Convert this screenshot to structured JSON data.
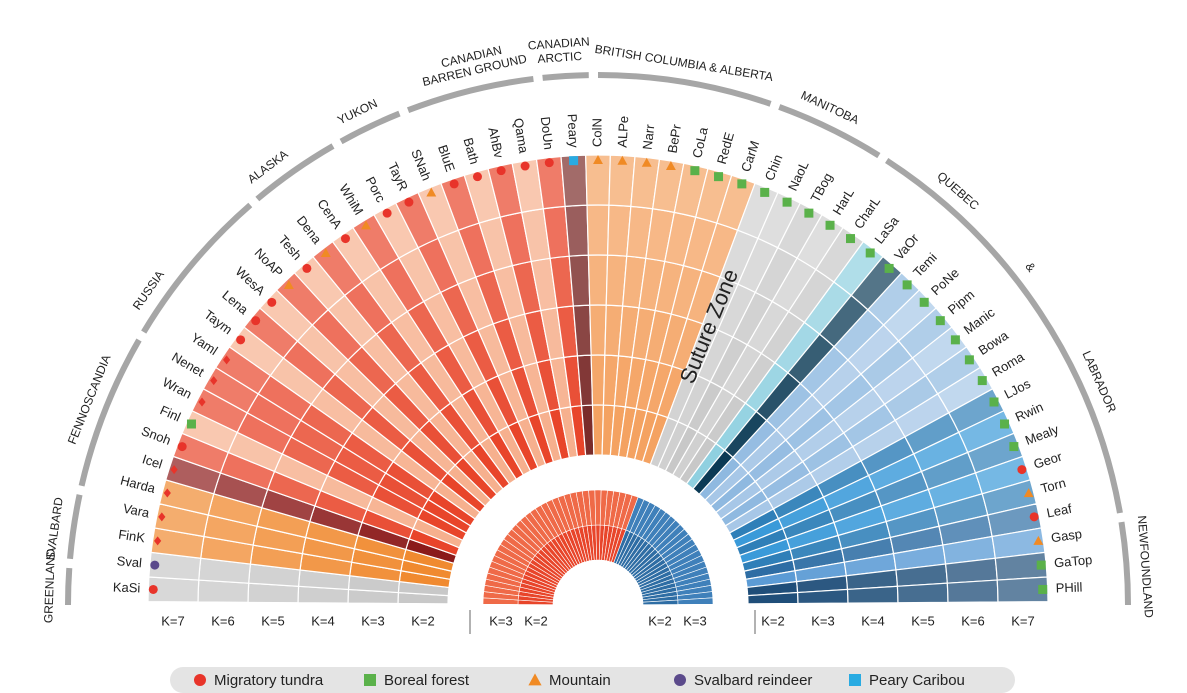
{
  "regions": [
    {
      "lines": [
        "GREENLAND"
      ]
    },
    {
      "lines": [
        "SVALBARD"
      ]
    },
    {
      "lines": [
        "FENNOSCANDIA"
      ]
    },
    {
      "lines": [
        "RUSSIA"
      ]
    },
    {
      "lines": [
        "ALASKA"
      ]
    },
    {
      "lines": [
        "YUKON"
      ]
    },
    {
      "lines": [
        "CANADIAN",
        "BARREN GROUND"
      ]
    },
    {
      "lines": [
        "CANADIAN",
        "ARCTIC"
      ]
    },
    {
      "lines": [
        "BRITISH COLUMBIA & ALBERTA"
      ]
    },
    {
      "lines": [
        "MANITOBA"
      ]
    },
    {
      "lines": [
        "QUEBEC"
      ]
    },
    {
      "lines": [
        "&"
      ]
    },
    {
      "lines": [
        "LABRADOR"
      ]
    },
    {
      "lines": [
        "NEWFOUNDLAND"
      ]
    }
  ],
  "populations": [
    {
      "label": "KaSi",
      "marker": "circle",
      "marker_color": "#e8342a",
      "fill": "#c8c8c8"
    },
    {
      "label": "Sval",
      "marker": "circle",
      "marker_color": "#5b4a8b",
      "fill": "#c8c8c8"
    },
    {
      "label": "FinK",
      "marker": "diamond",
      "marker_color": "#e8342a",
      "fill": "#f08a30"
    },
    {
      "label": "Vara",
      "marker": "diamond",
      "marker_color": "#e8342a",
      "fill": "#f08a30"
    },
    {
      "label": "Harda",
      "marker": "diamond",
      "marker_color": "#e8342a",
      "fill": "#f08a30"
    },
    {
      "label": "Icel",
      "marker": "diamond",
      "marker_color": "#e8342a",
      "fill": "#8b1a1a"
    },
    {
      "label": "Snoh",
      "marker": "circle",
      "marker_color": "#e8342a",
      "fill": "#e8452a"
    },
    {
      "label": "Finl",
      "marker": "square",
      "marker_color": "#5ab14a",
      "fill": "#f6b08e"
    },
    {
      "label": "Wran",
      "marker": "diamond",
      "marker_color": "#e8342a",
      "fill": "#e8452a"
    },
    {
      "label": "Nenet",
      "marker": "diamond",
      "marker_color": "#e8342a",
      "fill": "#e8452a"
    },
    {
      "label": "Yaml",
      "marker": "diamond",
      "marker_color": "#e8342a",
      "fill": "#e8452a"
    },
    {
      "label": "Taym",
      "marker": "circle",
      "marker_color": "#e8342a",
      "fill": "#f6b08e"
    },
    {
      "label": "Lena",
      "marker": "circle",
      "marker_color": "#e8342a",
      "fill": "#e8452a"
    },
    {
      "label": "WesA",
      "marker": "circle",
      "marker_color": "#e8342a",
      "fill": "#f6b08e"
    },
    {
      "label": "NoAP",
      "marker": "triangle",
      "marker_color": "#f08a24",
      "fill": "#e8452a"
    },
    {
      "label": "Tesh",
      "marker": "circle",
      "marker_color": "#e8342a",
      "fill": "#f6b08e"
    },
    {
      "label": "Dena",
      "marker": "triangle",
      "marker_color": "#f08a24",
      "fill": "#e8452a"
    },
    {
      "label": "CenA",
      "marker": "circle",
      "marker_color": "#e8342a",
      "fill": "#f6b08e"
    },
    {
      "label": "WhiM",
      "marker": "triangle",
      "marker_color": "#f08a24",
      "fill": "#e8452a"
    },
    {
      "label": "Porc",
      "marker": "circle",
      "marker_color": "#e8342a",
      "fill": "#f6b08e"
    },
    {
      "label": "TayR",
      "marker": "circle",
      "marker_color": "#e8342a",
      "fill": "#e8452a"
    },
    {
      "label": "SNah",
      "marker": "triangle",
      "marker_color": "#f08a24",
      "fill": "#f6b08e"
    },
    {
      "label": "BluE",
      "marker": "circle",
      "marker_color": "#e8342a",
      "fill": "#e8452a"
    },
    {
      "label": "Bath",
      "marker": "circle",
      "marker_color": "#e8342a",
      "fill": "#f6b08e"
    },
    {
      "label": "AhBv",
      "marker": "circle",
      "marker_color": "#e8342a",
      "fill": "#e8452a"
    },
    {
      "label": "Qama",
      "marker": "circle",
      "marker_color": "#e8342a",
      "fill": "#f6b08e"
    },
    {
      "label": "DoUn",
      "marker": "circle",
      "marker_color": "#e8342a",
      "fill": "#e8452a"
    },
    {
      "label": "Peary",
      "marker": "square",
      "marker_color": "#29abe2",
      "fill": "#7a2c2a"
    },
    {
      "label": "ColN",
      "marker": "triangle",
      "marker_color": "#f08a24",
      "fill": "#f4a261"
    },
    {
      "label": "ALPe",
      "marker": "triangle",
      "marker_color": "#f08a24",
      "fill": "#f4a261"
    },
    {
      "label": "Narr",
      "marker": "triangle",
      "marker_color": "#f08a24",
      "fill": "#f4a261"
    },
    {
      "label": "BePr",
      "marker": "triangle",
      "marker_color": "#f08a24",
      "fill": "#f4a261"
    },
    {
      "label": "CoLa",
      "marker": "square",
      "marker_color": "#5ab14a",
      "fill": "#f4a261"
    },
    {
      "label": "RedE",
      "marker": "square",
      "marker_color": "#5ab14a",
      "fill": "#f4a261"
    },
    {
      "label": "CarM",
      "marker": "square",
      "marker_color": "#5ab14a",
      "fill": "#f4a261"
    },
    {
      "label": "Chin",
      "marker": "square",
      "marker_color": "#5ab14a",
      "fill": "#d0d0d0"
    },
    {
      "label": "NaoL",
      "marker": "square",
      "marker_color": "#5ab14a",
      "fill": "#d0d0d0"
    },
    {
      "label": "TBog",
      "marker": "square",
      "marker_color": "#5ab14a",
      "fill": "#c8c8c8"
    },
    {
      "label": "HarL",
      "marker": "square",
      "marker_color": "#5ab14a",
      "fill": "#d0d0d0"
    },
    {
      "label": "CharL",
      "marker": "square",
      "marker_color": "#5ab14a",
      "fill": "#c8c8c8"
    },
    {
      "label": "LaSa",
      "marker": "square",
      "marker_color": "#5ab14a",
      "fill": "#8fd0e0"
    },
    {
      "label": "VaOr",
      "marker": "square",
      "marker_color": "#5ab14a",
      "fill": "#0b3a55"
    },
    {
      "label": "Temi",
      "marker": "square",
      "marker_color": "#5ab14a",
      "fill": "#8fb9e0"
    },
    {
      "label": "PoNe",
      "marker": "square",
      "marker_color": "#5ab14a",
      "fill": "#a7c7e7"
    },
    {
      "label": "Pipm",
      "marker": "square",
      "marker_color": "#5ab14a",
      "fill": "#8fb9e0"
    },
    {
      "label": "Manic",
      "marker": "square",
      "marker_color": "#5ab14a",
      "fill": "#a7c7e7"
    },
    {
      "label": "Bowa",
      "marker": "square",
      "marker_color": "#5ab14a",
      "fill": "#8fb9e0"
    },
    {
      "label": "Roma",
      "marker": "square",
      "marker_color": "#5ab14a",
      "fill": "#a7c7e7"
    },
    {
      "label": "LJos",
      "marker": "square",
      "marker_color": "#5ab14a",
      "fill": "#2f7fb8"
    },
    {
      "label": "Rwin",
      "marker": "square",
      "marker_color": "#5ab14a",
      "fill": "#3a9ad9"
    },
    {
      "label": "Mealy",
      "marker": "square",
      "marker_color": "#5ab14a",
      "fill": "#2f7fb8"
    },
    {
      "label": "Geor",
      "marker": "circle",
      "marker_color": "#e8342a",
      "fill": "#3a9ad9"
    },
    {
      "label": "Torn",
      "marker": "triangle",
      "marker_color": "#f08a24",
      "fill": "#2f7fb8"
    },
    {
      "label": "Leaf",
      "marker": "circle",
      "marker_color": "#e8342a",
      "fill": "#2e6da4"
    },
    {
      "label": "Gasp",
      "marker": "triangle",
      "marker_color": "#f08a24",
      "fill": "#5b9bd5"
    },
    {
      "label": "GaTop",
      "marker": "square",
      "marker_color": "#5ab14a",
      "fill": "#1f4e79"
    },
    {
      "label": "PHill",
      "marker": "square",
      "marker_color": "#5ab14a",
      "fill": "#1f4e79"
    }
  ],
  "suture_label": "Suture Zone",
  "k_labels": {
    "left_outer": [
      "K=7",
      "K=6",
      "K=5",
      "K=4",
      "K=3",
      "K=2"
    ],
    "left_inner": [
      "K=3",
      "K=2"
    ],
    "right_inner": [
      "K=2",
      "K=3"
    ],
    "right_outer": [
      "K=2",
      "K=3",
      "K=4",
      "K=5",
      "K=6",
      "K=7"
    ]
  },
  "legend": [
    {
      "label": "Migratory tundra",
      "marker": "circle",
      "color": "#e8342a"
    },
    {
      "label": "Boreal forest",
      "marker": "square",
      "color": "#5ab14a"
    },
    {
      "label": "Mountain",
      "marker": "triangle",
      "color": "#f08a24"
    },
    {
      "label": "Svalbard reindeer",
      "marker": "circle",
      "color": "#5b4a8b"
    },
    {
      "label": "Peary Caribou",
      "marker": "square",
      "color": "#29abe2"
    }
  ]
}
